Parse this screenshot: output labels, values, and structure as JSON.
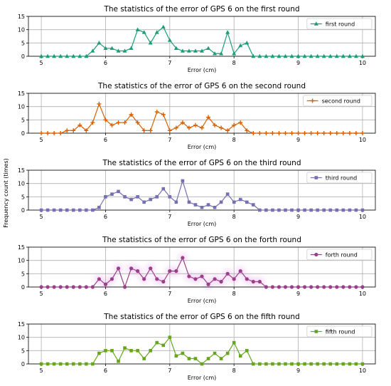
{
  "figure": {
    "ylabel": "Frequency count (times)"
  },
  "chart_data": [
    {
      "type": "line",
      "title": "The statistics of the error of GPS 6 on the first round",
      "xlabel": "Error (cm)",
      "ylabel": "",
      "xlim": [
        4.8,
        10.2
      ],
      "ylim": [
        0,
        15
      ],
      "xticks": [
        5,
        6,
        7,
        8,
        9,
        10
      ],
      "yticks": [
        0,
        5,
        10,
        15
      ],
      "grid": true,
      "legend": "top-right",
      "series": [
        {
          "name": "first round",
          "color": "#1a9e77",
          "marker": "triangle",
          "x": [
            5.0,
            5.1,
            5.2,
            5.3,
            5.4,
            5.5,
            5.6,
            5.7,
            5.8,
            5.9,
            6.0,
            6.1,
            6.2,
            6.3,
            6.4,
            6.5,
            6.6,
            6.7,
            6.8,
            6.9,
            7.0,
            7.1,
            7.2,
            7.3,
            7.4,
            7.5,
            7.6,
            7.7,
            7.8,
            7.9,
            8.0,
            8.1,
            8.2,
            8.3,
            8.4,
            8.5,
            8.6,
            8.7,
            8.8,
            8.9,
            9.0,
            9.1,
            9.2,
            9.3,
            9.4,
            9.5,
            9.6,
            9.7,
            9.8,
            9.9,
            10.0
          ],
          "y": [
            0,
            0,
            0,
            0,
            0,
            0,
            0,
            0,
            2,
            5,
            3,
            3,
            2,
            2,
            3,
            10,
            9,
            5,
            9,
            11,
            6,
            3,
            2,
            2,
            2,
            2,
            3,
            1,
            1,
            9,
            1,
            4,
            5,
            0,
            0,
            0,
            0,
            0,
            0,
            0,
            0,
            0,
            0,
            0,
            0,
            0,
            0,
            0,
            0,
            0,
            0
          ]
        }
      ]
    },
    {
      "type": "line",
      "title": "The statistics of the error of GPS 6 on the second round",
      "xlabel": "Error (cm)",
      "ylabel": "",
      "xlim": [
        4.8,
        10.2
      ],
      "ylim": [
        0,
        15
      ],
      "xticks": [
        5,
        6,
        7,
        8,
        9,
        10
      ],
      "yticks": [
        0,
        5,
        10,
        15
      ],
      "grid": true,
      "legend": "top-right",
      "series": [
        {
          "name": "second round",
          "color": "#d95f02",
          "marker": "plus",
          "x": [
            5.0,
            5.1,
            5.2,
            5.3,
            5.4,
            5.5,
            5.6,
            5.7,
            5.8,
            5.9,
            6.0,
            6.1,
            6.2,
            6.3,
            6.4,
            6.5,
            6.6,
            6.7,
            6.8,
            6.9,
            7.0,
            7.1,
            7.2,
            7.3,
            7.4,
            7.5,
            7.6,
            7.7,
            7.8,
            7.9,
            8.0,
            8.1,
            8.2,
            8.3,
            8.4,
            8.5,
            8.6,
            8.7,
            8.8,
            8.9,
            9.0,
            9.1,
            9.2,
            9.3,
            9.4,
            9.5,
            9.6,
            9.7,
            9.8,
            9.9,
            10.0
          ],
          "y": [
            0,
            0,
            0,
            0,
            1,
            1,
            3,
            1,
            4,
            11,
            5,
            3,
            4,
            4,
            7,
            4,
            1,
            1,
            8,
            7,
            1,
            2,
            4,
            2,
            3,
            2,
            6,
            3,
            2,
            1,
            3,
            4,
            1,
            0,
            0,
            0,
            0,
            0,
            0,
            0,
            0,
            0,
            0,
            0,
            0,
            0,
            0,
            0,
            0,
            0,
            0
          ]
        }
      ]
    },
    {
      "type": "line",
      "title": "The statistics of the error of GPS 6 on the third round",
      "xlabel": "Error (cm)",
      "ylabel": "",
      "xlim": [
        4.8,
        10.2
      ],
      "ylim": [
        0,
        15
      ],
      "xticks": [
        5,
        6,
        7,
        8,
        9,
        10
      ],
      "yticks": [
        0,
        5,
        10,
        15
      ],
      "grid": true,
      "legend": "top-right",
      "series": [
        {
          "name": "third round",
          "color": "#7570b3",
          "marker": "square",
          "x": [
            5.0,
            5.1,
            5.2,
            5.3,
            5.4,
            5.5,
            5.6,
            5.7,
            5.8,
            5.9,
            6.0,
            6.1,
            6.2,
            6.3,
            6.4,
            6.5,
            6.6,
            6.7,
            6.8,
            6.9,
            7.0,
            7.1,
            7.2,
            7.3,
            7.4,
            7.5,
            7.6,
            7.7,
            7.8,
            7.9,
            8.0,
            8.1,
            8.2,
            8.3,
            8.4,
            8.5,
            8.6,
            8.7,
            8.8,
            8.9,
            9.0,
            9.1,
            9.2,
            9.3,
            9.4,
            9.5,
            9.6,
            9.7,
            9.8,
            9.9,
            10.0
          ],
          "y": [
            0,
            0,
            0,
            0,
            0,
            0,
            0,
            0,
            0,
            1,
            5,
            6,
            7,
            5,
            4,
            5,
            3,
            4,
            5,
            8,
            5,
            3,
            11,
            3,
            2,
            1,
            2,
            1,
            3,
            6,
            3,
            4,
            3,
            2,
            0,
            0,
            0,
            0,
            0,
            0,
            0,
            0,
            0,
            0,
            0,
            0,
            0,
            0,
            0,
            0,
            0
          ]
        }
      ]
    },
    {
      "type": "line",
      "title": "The statistics of the error of GPS 6 on the forth round",
      "xlabel": "Error (cm)",
      "ylabel": "",
      "xlim": [
        4.8,
        10.2
      ],
      "ylim": [
        0,
        15
      ],
      "xticks": [
        5,
        6,
        7,
        8,
        9,
        10
      ],
      "yticks": [
        0,
        5,
        10,
        15
      ],
      "grid": true,
      "legend": "top-right",
      "series": [
        {
          "name": "forth round",
          "color": "#9c3f8a",
          "marker": "circle",
          "x": [
            5.0,
            5.1,
            5.2,
            5.3,
            5.4,
            5.5,
            5.6,
            5.7,
            5.8,
            5.9,
            6.0,
            6.1,
            6.2,
            6.3,
            6.4,
            6.5,
            6.6,
            6.7,
            6.8,
            6.9,
            7.0,
            7.1,
            7.2,
            7.3,
            7.4,
            7.5,
            7.6,
            7.7,
            7.8,
            7.9,
            8.0,
            8.1,
            8.2,
            8.3,
            8.4,
            8.5,
            8.6,
            8.7,
            8.8,
            8.9,
            9.0,
            9.1,
            9.2,
            9.3,
            9.4,
            9.5,
            9.6,
            9.7,
            9.8,
            9.9,
            10.0
          ],
          "y": [
            0,
            0,
            0,
            0,
            0,
            0,
            0,
            0,
            0,
            3,
            1,
            3,
            7,
            0,
            7,
            6,
            3,
            7,
            3,
            2,
            6,
            6,
            11,
            4,
            3,
            4,
            1,
            3,
            2,
            5,
            3,
            6,
            3,
            2,
            2,
            0,
            0,
            0,
            0,
            0,
            0,
            0,
            0,
            0,
            0,
            0,
            0,
            0,
            0,
            0,
            0
          ]
        }
      ]
    },
    {
      "type": "line",
      "title": "The statistics of the error of GPS 6 on the fifth round",
      "xlabel": "Error (cm)",
      "ylabel": "",
      "xlim": [
        4.8,
        10.2
      ],
      "ylim": [
        0,
        15
      ],
      "xticks": [
        5,
        6,
        7,
        8,
        9,
        10
      ],
      "yticks": [
        0,
        5,
        10,
        15
      ],
      "grid": true,
      "legend": "top-right",
      "series": [
        {
          "name": "fifth round",
          "color": "#66a61e",
          "marker": "square",
          "x": [
            5.0,
            5.1,
            5.2,
            5.3,
            5.4,
            5.5,
            5.6,
            5.7,
            5.8,
            5.9,
            6.0,
            6.1,
            6.2,
            6.3,
            6.4,
            6.5,
            6.6,
            6.7,
            6.8,
            6.9,
            7.0,
            7.1,
            7.2,
            7.3,
            7.4,
            7.5,
            7.6,
            7.7,
            7.8,
            7.9,
            8.0,
            8.1,
            8.2,
            8.3,
            8.4,
            8.5,
            8.6,
            8.7,
            8.8,
            8.9,
            9.0,
            9.1,
            9.2,
            9.3,
            9.4,
            9.5,
            9.6,
            9.7,
            9.8,
            9.9,
            10.0
          ],
          "y": [
            0,
            0,
            0,
            0,
            0,
            0,
            0,
            0,
            0,
            4,
            5,
            5,
            1,
            6,
            5,
            5,
            2,
            5,
            8,
            7,
            10,
            3,
            4,
            2,
            2,
            0,
            2,
            4,
            2,
            4,
            8,
            3,
            5,
            0,
            0,
            0,
            0,
            0,
            0,
            0,
            0,
            0,
            0,
            0,
            0,
            0,
            0,
            0,
            0,
            0,
            0
          ]
        }
      ]
    }
  ]
}
